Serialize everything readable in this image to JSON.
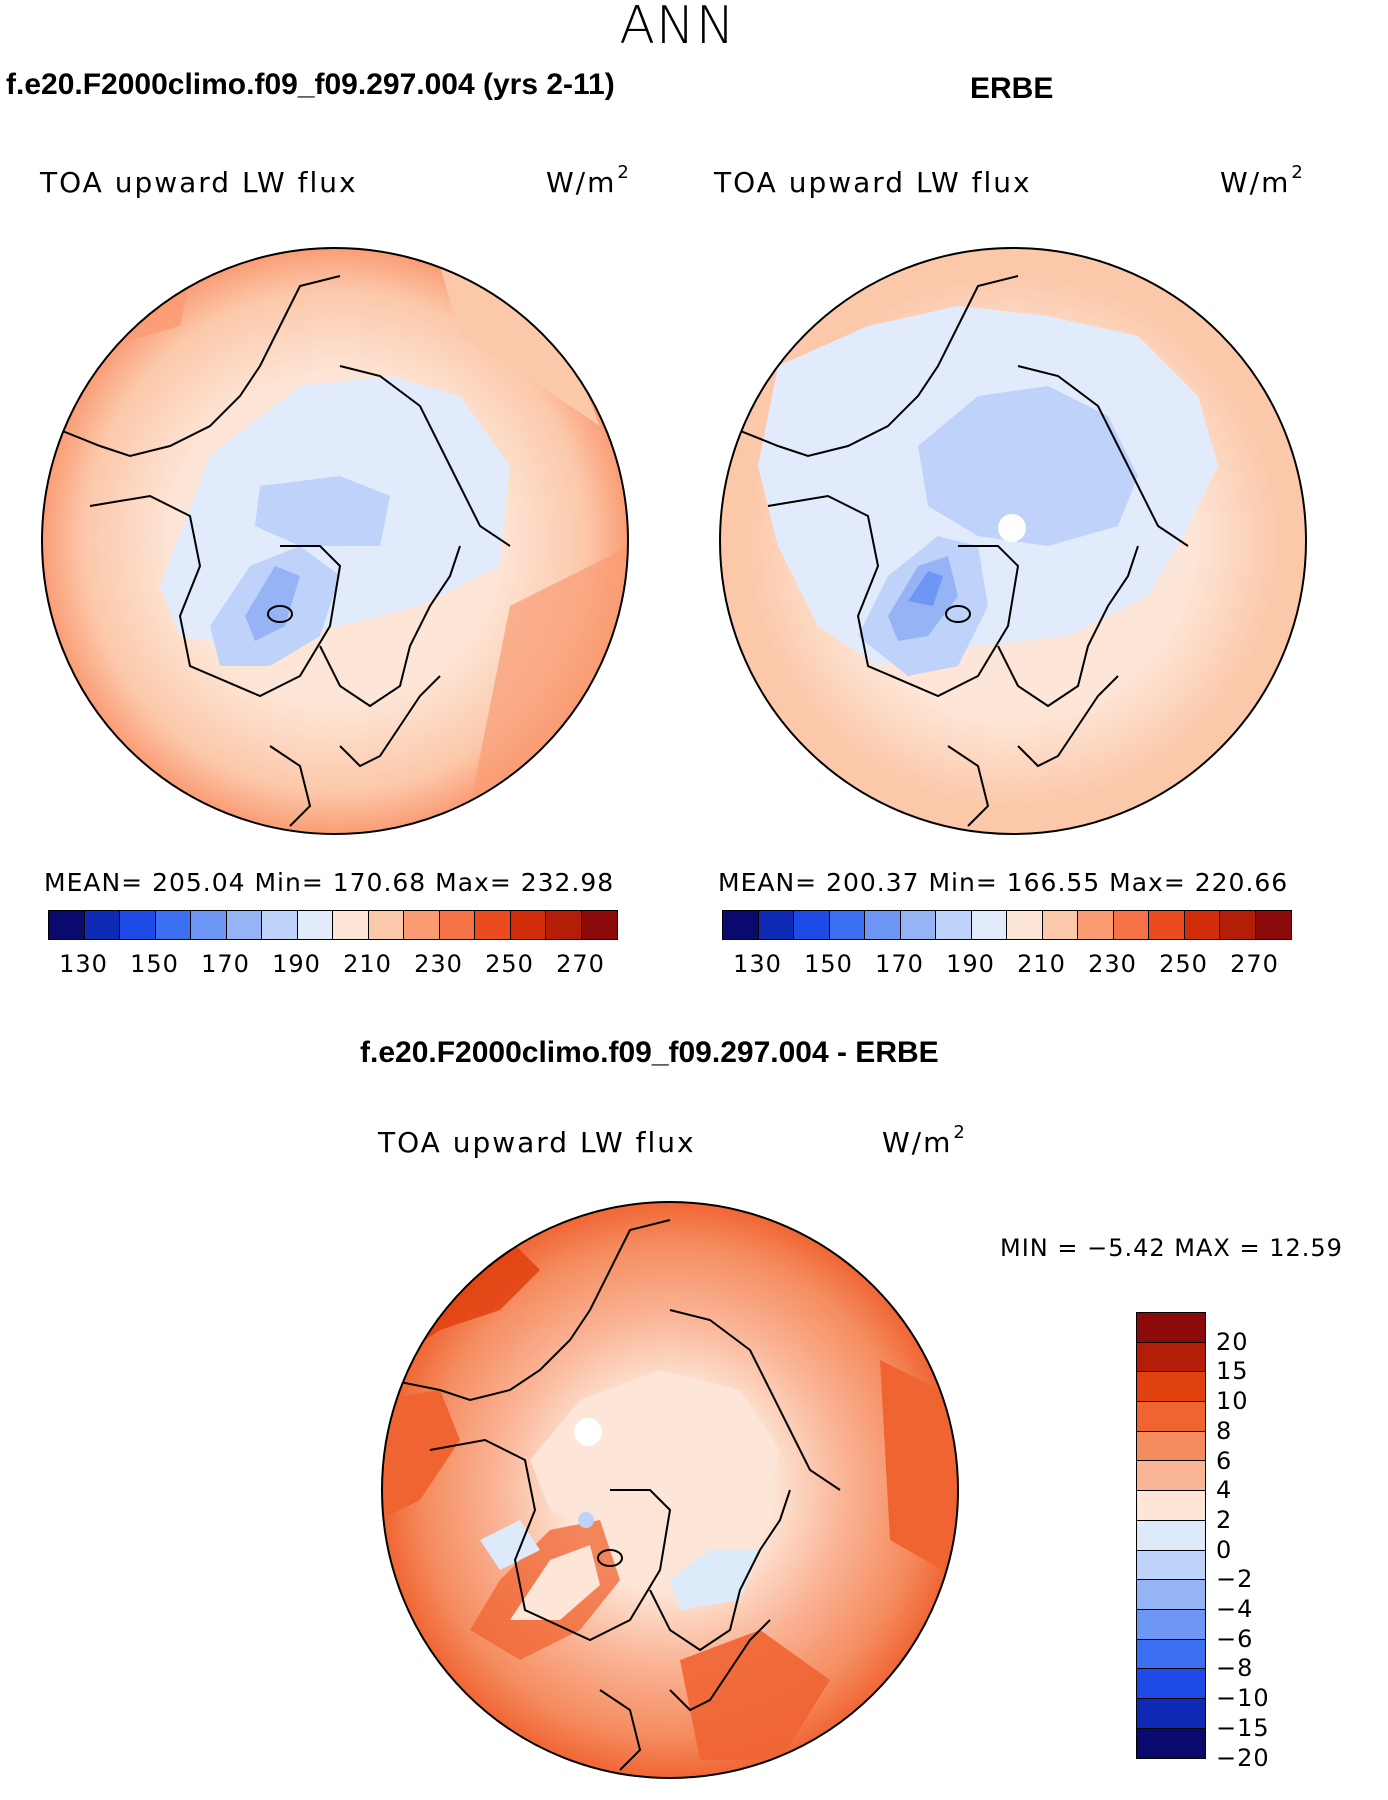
{
  "title": "ANN",
  "model_title": "f.e20.F2000climo.f09_f09.297.004 (yrs 2-11)",
  "obs_title": "ERBE",
  "diff_title": "f.e20.F2000climo.f09_f09.297.004 - ERBE",
  "panels": {
    "model": {
      "variable": "TOA upward LW flux",
      "units_base": "W/m",
      "units_exp": "2",
      "stats": "MEAN= 205.04   Min= 170.68   Max= 232.98"
    },
    "obs": {
      "variable": "TOA upward LW flux",
      "units_base": "W/m",
      "units_exp": "2",
      "stats": "MEAN= 200.37   Min= 166.55   Max= 220.66"
    },
    "diff": {
      "variable": "TOA upward LW flux",
      "units_base": "W/m",
      "units_exp": "2",
      "minmax": "MIN =   −5.42  MAX =   12.59"
    }
  },
  "abs_colorbar": {
    "colors": [
      "#0a0a6e",
      "#0f2ab4",
      "#1e4be6",
      "#3c6ef0",
      "#6e96f5",
      "#96b4f5",
      "#bed2fa",
      "#e1ebfc",
      "#fde6d7",
      "#fcc8aa",
      "#fa9b73",
      "#f57346",
      "#eb4b1e",
      "#d22d0a",
      "#b41e08",
      "#8c0a0a"
    ],
    "ticks": [
      "130",
      "150",
      "170",
      "190",
      "210",
      "230",
      "250",
      "270"
    ]
  },
  "diff_colorbar": {
    "colors": [
      "#8c0a0a",
      "#b41e08",
      "#e1410f",
      "#f06432",
      "#f58c5f",
      "#fab496",
      "#fde6d7",
      "#dceafa",
      "#bed2fa",
      "#96b4f5",
      "#6e96f5",
      "#3c6ef0",
      "#1e4be6",
      "#0f2ab4",
      "#0a0a6e"
    ],
    "ticks": [
      "20",
      "15",
      "10",
      "8",
      "6",
      "4",
      "2",
      "0",
      "−2",
      "−4",
      "−6",
      "−8",
      "−10",
      "−15",
      "−20"
    ]
  }
}
